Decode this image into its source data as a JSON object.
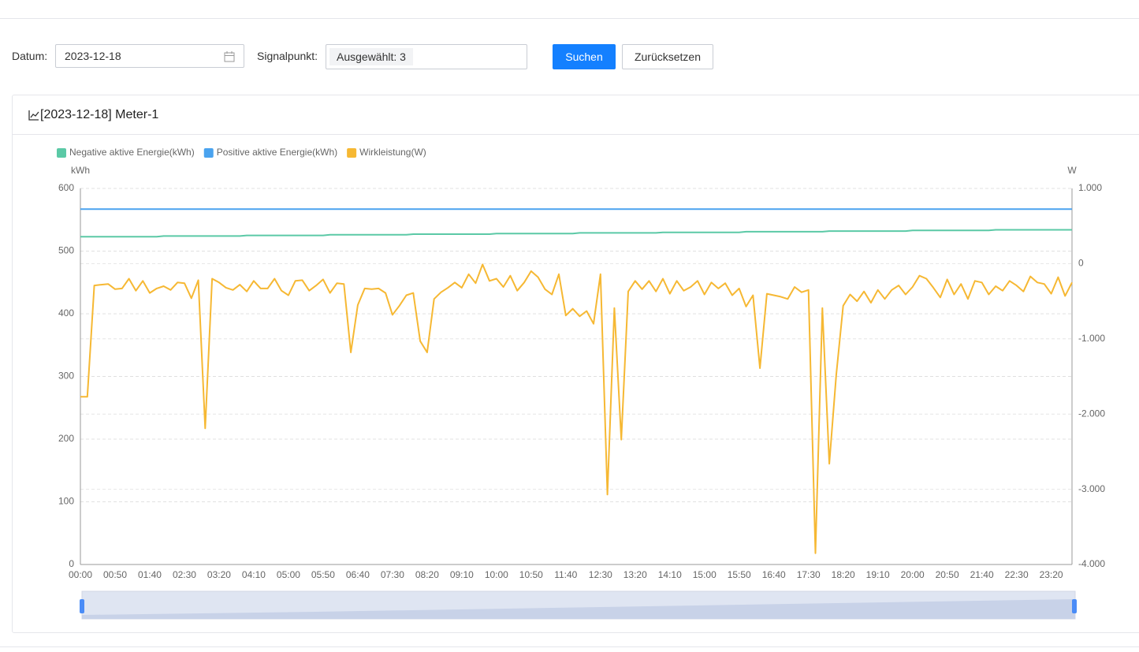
{
  "form": {
    "date_label": "Datum:",
    "date_value": "2023-12-18",
    "signal_label": "Signalpunkt:",
    "signal_tag": "Ausgewählt: 3",
    "search_button": "Suchen",
    "reset_button": "Zurücksetzen"
  },
  "card": {
    "title": "[2023-12-18] Meter-1"
  },
  "chart_data": {
    "type": "line",
    "y_axis_label": "kWh",
    "y2_axis_label": "W",
    "categories": [
      "00:00",
      null,
      null,
      null,
      null,
      "00:50",
      null,
      null,
      null,
      null,
      "01:40",
      null,
      null,
      null,
      null,
      "02:30",
      null,
      null,
      null,
      null,
      "03:20",
      null,
      null,
      null,
      null,
      "04:10",
      null,
      null,
      null,
      null,
      "05:00",
      null,
      null,
      null,
      null,
      "05:50",
      null,
      null,
      null,
      null,
      "06:40",
      null,
      null,
      null,
      null,
      "07:30",
      null,
      null,
      null,
      null,
      "08:20",
      null,
      null,
      null,
      null,
      "09:10",
      null,
      null,
      null,
      null,
      "10:00",
      null,
      null,
      null,
      null,
      "10:50",
      null,
      null,
      null,
      null,
      "11:40",
      null,
      null,
      null,
      null,
      "12:30",
      null,
      null,
      null,
      null,
      "13:20",
      null,
      null,
      null,
      null,
      "14:10",
      null,
      null,
      null,
      null,
      "15:00",
      null,
      null,
      null,
      null,
      "15:50",
      null,
      null,
      null,
      null,
      "16:40",
      null,
      null,
      null,
      null,
      "17:30",
      null,
      null,
      null,
      null,
      "18:20",
      null,
      null,
      null,
      null,
      "19:10",
      null,
      null,
      null,
      null,
      "20:00",
      null,
      null,
      null,
      null,
      "20:50",
      null,
      null,
      null,
      null,
      "21:40",
      null,
      null,
      null,
      null,
      "22:30",
      null,
      null,
      null,
      null,
      "23:20",
      null,
      null,
      null
    ],
    "series": [
      {
        "name": "Negative aktive Energie(kWh)",
        "color": "#5bc9a6",
        "values": [
          523,
          523,
          523,
          523,
          523,
          523,
          523,
          523,
          523,
          523,
          523,
          523,
          524,
          524,
          524,
          524,
          524,
          524,
          524,
          524,
          524,
          524,
          524,
          524,
          525,
          525,
          525,
          525,
          525,
          525,
          525,
          525,
          525,
          525,
          525,
          525,
          526,
          526,
          526,
          526,
          526,
          526,
          526,
          526,
          526,
          526,
          526,
          526,
          527,
          527,
          527,
          527,
          527,
          527,
          527,
          527,
          527,
          527,
          527,
          527,
          528,
          528,
          528,
          528,
          528,
          528,
          528,
          528,
          528,
          528,
          528,
          528,
          529,
          529,
          529,
          529,
          529,
          529,
          529,
          529,
          529,
          529,
          529,
          529,
          530,
          530,
          530,
          530,
          530,
          530,
          530,
          530,
          530,
          530,
          530,
          530,
          531,
          531,
          531,
          531,
          531,
          531,
          531,
          531,
          531,
          531,
          531,
          531,
          532,
          532,
          532,
          532,
          532,
          532,
          532,
          532,
          532,
          532,
          532,
          532,
          533,
          533,
          533,
          533,
          533,
          533,
          533,
          533,
          533,
          533,
          533,
          533,
          534,
          534,
          534,
          534,
          534,
          534,
          534,
          534,
          534,
          534,
          534,
          534
        ]
      },
      {
        "name": "Positive aktive Energie(kWh)",
        "color": "#4aa3ef",
        "values": [
          567,
          567,
          567,
          567,
          567,
          567,
          567,
          567,
          567,
          567,
          567,
          567,
          567,
          567,
          567,
          567,
          567,
          567,
          567,
          567,
          567,
          567,
          567,
          567,
          567,
          567,
          567,
          567,
          567,
          567,
          567,
          567,
          567,
          567,
          567,
          567,
          567,
          567,
          567,
          567,
          567,
          567,
          567,
          567,
          567,
          567,
          567,
          567,
          567,
          567,
          567,
          567,
          567,
          567,
          567,
          567,
          567,
          567,
          567,
          567,
          567,
          567,
          567,
          567,
          567,
          567,
          567,
          567,
          567,
          567,
          567,
          567,
          567,
          567,
          567,
          567,
          567,
          567,
          567,
          567,
          567,
          567,
          567,
          567,
          567,
          567,
          567,
          567,
          567,
          567,
          567,
          567,
          567,
          567,
          567,
          567,
          567,
          567,
          567,
          567,
          567,
          567,
          567,
          567,
          567,
          567,
          567,
          567,
          567,
          567,
          567,
          567,
          567,
          567,
          567,
          567,
          567,
          567,
          567,
          567,
          567,
          567,
          567,
          567,
          567,
          567,
          567,
          567,
          567,
          567,
          567,
          567,
          567,
          567,
          567,
          567,
          567,
          567,
          567,
          567,
          567,
          567,
          567,
          567
        ]
      },
      {
        "name": "Wirkleistung(W)",
        "color": "#f6b833",
        "axis": "y2",
        "values": [
          -1770,
          -1770,
          -290,
          -280,
          -270,
          -340,
          -330,
          -200,
          -360,
          -230,
          -390,
          -330,
          -300,
          -350,
          -250,
          -260,
          -460,
          -220,
          -2190,
          -200,
          -250,
          -320,
          -350,
          -280,
          -370,
          -230,
          -330,
          -330,
          -200,
          -360,
          -420,
          -230,
          -220,
          -360,
          -290,
          -210,
          -390,
          -260,
          -270,
          -1180,
          -550,
          -330,
          -340,
          -330,
          -390,
          -680,
          -560,
          -420,
          -390,
          -1030,
          -1180,
          -470,
          -380,
          -320,
          -250,
          -320,
          -140,
          -260,
          -10,
          -230,
          -200,
          -310,
          -160,
          -360,
          -250,
          -100,
          -180,
          -340,
          -410,
          -140,
          -690,
          -600,
          -700,
          -630,
          -800,
          -140,
          -3070,
          -590,
          -2340,
          -370,
          -230,
          -340,
          -230,
          -370,
          -200,
          -400,
          -230,
          -360,
          -310,
          -230,
          -410,
          -250,
          -330,
          -260,
          -420,
          -330,
          -570,
          -420,
          -1390,
          -400,
          -420,
          -440,
          -470,
          -310,
          -380,
          -350,
          -3850,
          -590,
          -2660,
          -1480,
          -560,
          -410,
          -500,
          -370,
          -520,
          -350,
          -470,
          -350,
          -290,
          -410,
          -310,
          -160,
          -200,
          -320,
          -450,
          -210,
          -410,
          -270,
          -470,
          -230,
          -250,
          -410,
          -300,
          -360,
          -230,
          -290,
          -370,
          -170,
          -250,
          -270,
          -400,
          -180,
          -430,
          -250
        ]
      }
    ],
    "ylim": [
      0,
      600
    ],
    "yticks": [
      0,
      100,
      200,
      300,
      400,
      500,
      600
    ],
    "y2lim": [
      -4000,
      1000
    ],
    "y2ticks": [
      {
        "value": -4000,
        "label": "-4.000"
      },
      {
        "value": -3000,
        "label": "-3.000"
      },
      {
        "value": -2000,
        "label": "-2.000"
      },
      {
        "value": -1000,
        "label": "-1.000"
      },
      0,
      {
        "value": 1000,
        "label": "1.000"
      }
    ],
    "grid": true,
    "legend": "top-left"
  }
}
